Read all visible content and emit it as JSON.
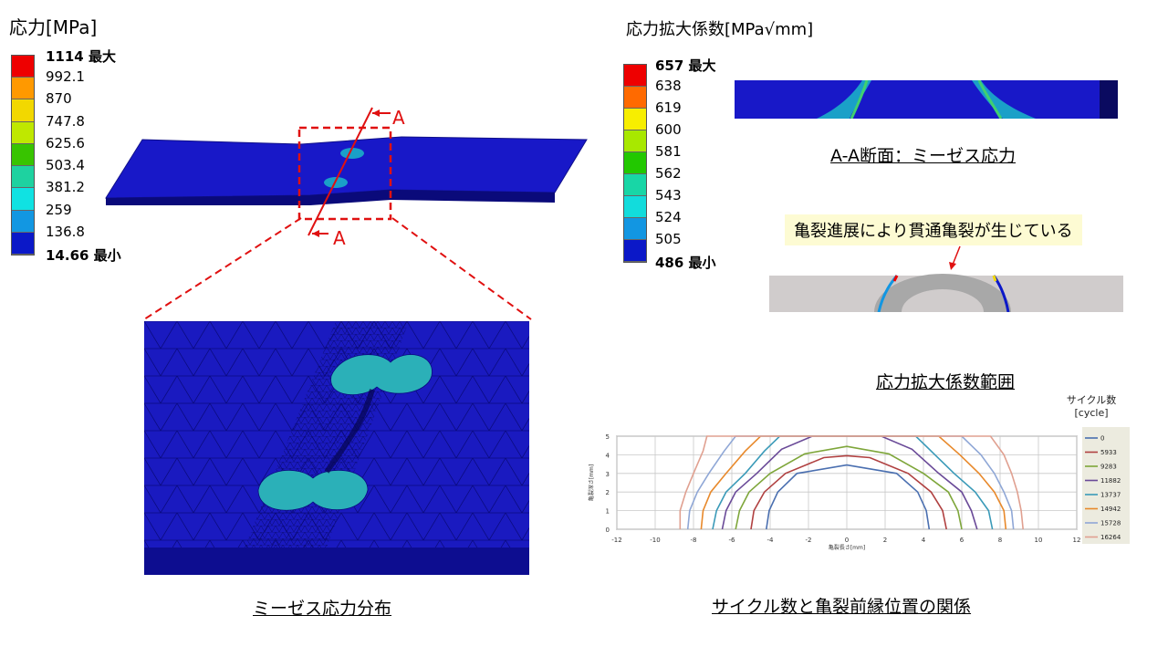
{
  "left_legend": {
    "title": "応力[MPa]",
    "max_label": "1114 最大",
    "min_label": "14.66 最小",
    "ticks": [
      "992.1",
      "870",
      "747.8",
      "625.6",
      "503.4",
      "381.2",
      "259",
      "136.8"
    ],
    "colors": [
      "#ee0000",
      "#ff9900",
      "#f2d800",
      "#bfe800",
      "#38c400",
      "#1ed2a0",
      "#10e2e2",
      "#1297e2",
      "#0b18c8"
    ]
  },
  "right_legend": {
    "title": "応力拡大係数[MPa√mm]",
    "max_label": "657 最大",
    "min_label": "486 最小",
    "ticks": [
      "638",
      "619",
      "600",
      "581",
      "562",
      "543",
      "524",
      "505"
    ],
    "colors": [
      "#ee0000",
      "#ff6a00",
      "#f7ee00",
      "#a8e800",
      "#22c800",
      "#18d6a6",
      "#12dcdc",
      "#1296e2",
      "#0b18c8"
    ]
  },
  "section_marks": {
    "top": "A",
    "bottom": "A"
  },
  "captions": {
    "mises_distribution": "ミーゼス応力分布",
    "aa_section": "A-A断面：ミーゼス応力",
    "sif_range": "応力拡大係数範囲",
    "cycle_relation": "サイクル数と亀裂前縁位置の関係"
  },
  "callout": "亀裂進展により貫通亀裂が生じている",
  "chart_data": {
    "type": "line",
    "xlabel": "亀裂長さ[mm]",
    "ylabel": "亀裂深さ[mm]",
    "xlim": [
      -12,
      12
    ],
    "ylim": [
      0,
      5
    ],
    "xticks": [
      "-12",
      "-10",
      "-8",
      "-6",
      "-4",
      "-2",
      "0",
      "2",
      "4",
      "6",
      "8",
      "10",
      "12"
    ],
    "yticks": [
      "0",
      "1",
      "2",
      "3",
      "4",
      "5"
    ],
    "grid": true,
    "legend_title": "サイクル数\n[cycle]",
    "legend_title_lines": [
      "サイクル数",
      "[cycle]"
    ],
    "legend_position": "right",
    "series": [
      {
        "name": "0",
        "color": "#4a6fb0",
        "points": [
          [
            -4.2,
            0
          ],
          [
            -4.05,
            1
          ],
          [
            -3.6,
            2
          ],
          [
            -2.6,
            3
          ],
          [
            0,
            3.45
          ],
          [
            2.6,
            3.0
          ],
          [
            3.7,
            2
          ],
          [
            4.15,
            1
          ],
          [
            4.3,
            0
          ]
        ]
      },
      {
        "name": "5933",
        "color": "#b04040",
        "points": [
          [
            -5.0,
            0
          ],
          [
            -4.85,
            1
          ],
          [
            -4.3,
            2
          ],
          [
            -3.2,
            3
          ],
          [
            -1.2,
            3.85
          ],
          [
            0,
            3.95
          ],
          [
            1.2,
            3.85
          ],
          [
            3.2,
            3.0
          ],
          [
            4.4,
            2
          ],
          [
            5.0,
            1
          ],
          [
            5.2,
            0
          ]
        ]
      },
      {
        "name": "9283",
        "color": "#7ea63a",
        "points": [
          [
            -5.8,
            0
          ],
          [
            -5.6,
            1
          ],
          [
            -5.1,
            2
          ],
          [
            -4.0,
            3
          ],
          [
            -2.2,
            4.05
          ],
          [
            0,
            4.45
          ],
          [
            2.2,
            4.05
          ],
          [
            4.0,
            3
          ],
          [
            5.3,
            2
          ],
          [
            5.8,
            1
          ],
          [
            6.0,
            0
          ]
        ]
      },
      {
        "name": "11882",
        "color": "#6a4a98",
        "points": [
          [
            -6.5,
            0
          ],
          [
            -6.3,
            1
          ],
          [
            -5.8,
            2
          ],
          [
            -4.7,
            3
          ],
          [
            -3.4,
            4.3
          ],
          [
            -1.8,
            5
          ],
          [
            1.8,
            5
          ],
          [
            3.4,
            4.3
          ],
          [
            4.8,
            3
          ],
          [
            6.0,
            2
          ],
          [
            6.5,
            1
          ],
          [
            6.8,
            0
          ]
        ]
      },
      {
        "name": "13737",
        "color": "#3a9ab8",
        "points": [
          [
            -7.0,
            0
          ],
          [
            -6.8,
            1
          ],
          [
            -6.3,
            2
          ],
          [
            -5.3,
            3
          ],
          [
            -4.3,
            4.2
          ],
          [
            -3.5,
            5
          ],
          [
            3.6,
            5
          ],
          [
            4.6,
            4.0
          ],
          [
            5.6,
            3
          ],
          [
            6.7,
            2
          ],
          [
            7.4,
            1
          ],
          [
            7.6,
            0
          ]
        ]
      },
      {
        "name": "14942",
        "color": "#e8892b",
        "points": [
          [
            -7.6,
            0
          ],
          [
            -7.5,
            1
          ],
          [
            -7.1,
            2
          ],
          [
            -6.3,
            3
          ],
          [
            -5.3,
            4.2
          ],
          [
            -4.5,
            5
          ],
          [
            4.8,
            5
          ],
          [
            5.9,
            4.0
          ],
          [
            6.9,
            3
          ],
          [
            7.7,
            2
          ],
          [
            8.2,
            1
          ],
          [
            8.3,
            0
          ]
        ]
      },
      {
        "name": "15728",
        "color": "#8fa7d6",
        "points": [
          [
            -8.3,
            0
          ],
          [
            -8.2,
            1
          ],
          [
            -7.8,
            2
          ],
          [
            -7.2,
            3
          ],
          [
            -6.4,
            4.2
          ],
          [
            -5.8,
            5
          ],
          [
            6.0,
            5
          ],
          [
            7.0,
            4.0
          ],
          [
            7.7,
            3
          ],
          [
            8.2,
            2
          ],
          [
            8.6,
            1
          ],
          [
            8.7,
            0
          ]
        ]
      },
      {
        "name": "16264",
        "color": "#e0a090",
        "points": [
          [
            -8.7,
            0
          ],
          [
            -8.7,
            1
          ],
          [
            -8.4,
            2
          ],
          [
            -8.0,
            3
          ],
          [
            -7.5,
            4.2
          ],
          [
            -7.3,
            5
          ],
          [
            7.5,
            5
          ],
          [
            8.2,
            4.0
          ],
          [
            8.6,
            3
          ],
          [
            8.9,
            2
          ],
          [
            9.1,
            1
          ],
          [
            9.2,
            0
          ]
        ]
      }
    ]
  }
}
